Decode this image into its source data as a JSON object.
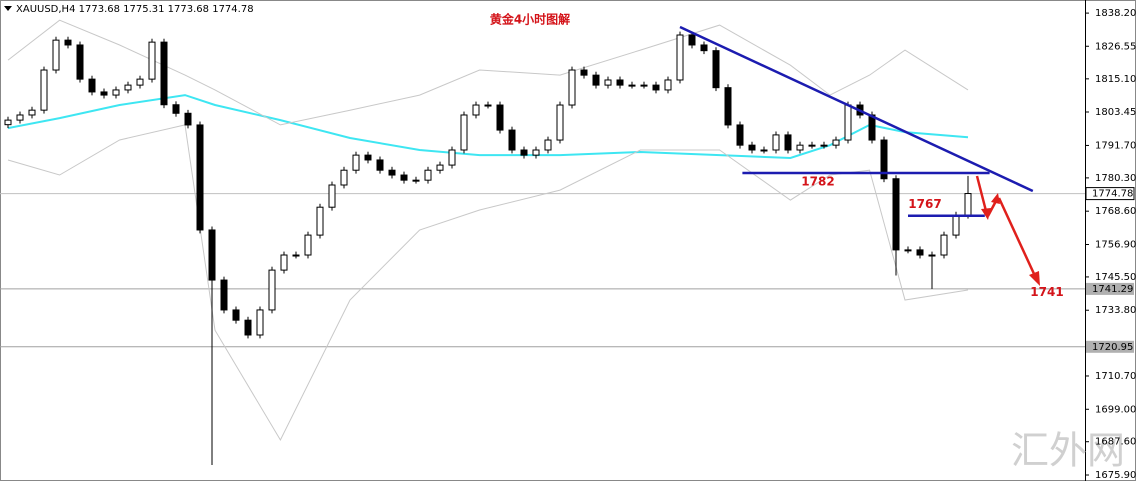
{
  "chart_data": {
    "type": "candlestick",
    "header": "XAUUSD,H4  1773.68 1775.31 1773.68 1774.78",
    "title": "黄金4小时图解",
    "watermark": "汇外网",
    "xlim": [
      -0.667,
      89.75
    ],
    "ylim": [
      1674.5,
      1842.1
    ],
    "yticks": [
      {
        "value": 1838.2,
        "label": "1838.20"
      },
      1826.55,
      {
        "value": 1815.1,
        "label": "1815.10"
      },
      1803.45,
      {
        "value": 1791.7,
        "label": "1791.70"
      },
      {
        "value": 1780.3,
        "label": "1780.30"
      },
      {
        "value": 1768.6,
        "label": "1768.60"
      },
      {
        "value": 1756.9,
        "label": "1756.90"
      },
      {
        "value": 1745.5,
        "label": "1745.50"
      },
      {
        "value": 1733.8,
        "label": "1733.80"
      },
      {
        "value": 1710.7,
        "label": "1710.70"
      },
      {
        "value": 1699,
        "label": "1699.00"
      },
      {
        "value": 1687.6,
        "label": "1687.60"
      },
      {
        "value": 1675.9,
        "label": "1675.90"
      }
    ],
    "open": [
      1799.0,
      1800.6,
      1802.4,
      1804.1,
      1818.2,
      1828.7,
      1827.0,
      1815.0,
      1810.5,
      1809.4,
      1811.2,
      1812.9,
      1815.0,
      1828.0,
      1806.0,
      1803.0,
      1798.9,
      1762.0,
      1744.4,
      1733.9,
      1730.3,
      1725.1,
      1733.9,
      1747.9,
      1753.2,
      1753.2,
      1760.2,
      1770.0,
      1777.8,
      1783.0,
      1788.3,
      1786.6,
      1783.0,
      1781.3,
      1779.5,
      1779.5,
      1783.0,
      1784.8,
      1790.1,
      1802.4,
      1805.9,
      1805.9,
      1797.1,
      1790.1,
      1788.3,
      1790.1,
      1793.6,
      1805.9,
      1818.2,
      1816.4,
      1812.9,
      1814.7,
      1812.9,
      1812.9,
      1812.9,
      1811.2,
      1814.7,
      1830.5,
      1827.0,
      1825.0,
      1812.0,
      1798.9,
      1791.8,
      1790.1,
      1790.1,
      1795.4,
      1790.1,
      1791.8,
      1791.8,
      1791.8,
      1793.6,
      1805.9,
      1802.4,
      1793.6,
      1780.0,
      1755.0,
      1755.0,
      1753.2,
      1753.2,
      1760.2,
      1767.2
    ],
    "high": [
      1801.8,
      1803.6,
      1805.3,
      1819.4,
      1829.9,
      1829.9,
      1828.2,
      1816.2,
      1811.7,
      1812.4,
      1814.1,
      1816.2,
      1829.2,
      1829.2,
      1807.2,
      1804.2,
      1800.1,
      1763.2,
      1745.6,
      1735.1,
      1731.5,
      1735.1,
      1749.1,
      1754.4,
      1754.4,
      1761.4,
      1771.2,
      1779.0,
      1784.2,
      1789.5,
      1789.5,
      1787.8,
      1784.2,
      1782.5,
      1780.7,
      1784.2,
      1786.0,
      1791.3,
      1803.6,
      1807.1,
      1807.1,
      1807.1,
      1798.3,
      1791.3,
      1791.3,
      1794.8,
      1807.1,
      1819.4,
      1819.4,
      1817.6,
      1815.9,
      1815.9,
      1814.1,
      1814.1,
      1814.1,
      1815.9,
      1831.7,
      1831.7,
      1828.2,
      1826.2,
      1813.2,
      1800.1,
      1793.0,
      1791.3,
      1796.6,
      1796.6,
      1793.0,
      1793.0,
      1793.0,
      1794.8,
      1807.1,
      1807.1,
      1803.6,
      1794.8,
      1781.2,
      1756.2,
      1756.2,
      1754.4,
      1761.4,
      1768.4,
      1781.0
    ],
    "low": [
      1797.8,
      1799.4,
      1801.2,
      1802.9,
      1817.0,
      1825.8,
      1813.8,
      1809.3,
      1808.2,
      1808.2,
      1810.0,
      1811.7,
      1813.8,
      1804.8,
      1801.8,
      1797.7,
      1760.8,
      1679.4,
      1732.7,
      1729.1,
      1723.9,
      1723.9,
      1732.7,
      1746.7,
      1752.0,
      1752.0,
      1759.0,
      1768.8,
      1776.6,
      1781.8,
      1785.4,
      1781.8,
      1780.1,
      1778.3,
      1778.3,
      1778.3,
      1781.8,
      1783.6,
      1788.9,
      1801.2,
      1804.7,
      1795.9,
      1788.9,
      1787.1,
      1787.1,
      1788.9,
      1792.4,
      1804.7,
      1815.2,
      1811.7,
      1811.7,
      1811.7,
      1811.7,
      1811.7,
      1810.0,
      1810.0,
      1813.5,
      1825.8,
      1823.8,
      1810.8,
      1797.7,
      1790.6,
      1788.9,
      1788.9,
      1788.9,
      1788.9,
      1788.9,
      1790.6,
      1790.6,
      1790.6,
      1792.4,
      1801.2,
      1792.4,
      1778.8,
      1746.0,
      1753.8,
      1752.0,
      1741.3,
      1752.0,
      1759.0,
      1766.0
    ],
    "close": [
      1800.6,
      1802.4,
      1804.1,
      1818.2,
      1828.7,
      1827.0,
      1815.0,
      1810.5,
      1809.4,
      1811.2,
      1812.9,
      1815.0,
      1828.0,
      1806.0,
      1803.0,
      1798.9,
      1762.0,
      1744.4,
      1733.9,
      1730.3,
      1725.1,
      1733.9,
      1747.9,
      1753.2,
      1753.2,
      1760.2,
      1770.0,
      1777.8,
      1783.0,
      1788.3,
      1786.6,
      1783.0,
      1781.3,
      1779.5,
      1779.5,
      1783.0,
      1784.8,
      1790.1,
      1802.4,
      1805.9,
      1805.9,
      1797.1,
      1790.1,
      1788.3,
      1790.1,
      1793.6,
      1805.9,
      1818.2,
      1816.4,
      1812.9,
      1814.7,
      1812.9,
      1812.9,
      1812.9,
      1811.2,
      1814.7,
      1830.5,
      1827.0,
      1825.0,
      1812.0,
      1798.9,
      1791.8,
      1790.1,
      1790.1,
      1795.4,
      1790.1,
      1791.8,
      1791.8,
      1791.8,
      1793.6,
      1805.9,
      1802.4,
      1793.6,
      1780.0,
      1755.0,
      1755.0,
      1753.2,
      1753.2,
      1760.2,
      1767.2,
      1774.8
    ],
    "indicators": [
      {
        "color": "#3ee6f2",
        "width": 2,
        "x": [
          0,
          4.3,
          9.3,
          14.75,
          17.25,
          22.7,
          28.5,
          34.3,
          39.3,
          46,
          52.7,
          59.3,
          65.2,
          68.5,
          71.8,
          74.75,
          80
        ],
        "values": [
          1797.8,
          1801.3,
          1805.9,
          1809.4,
          1805.9,
          1800.6,
          1794.3,
          1790.1,
          1788.3,
          1788.3,
          1789.4,
          1788.3,
          1787.3,
          1791.8,
          1798.9,
          1796.4,
          1794.6
        ]
      },
      {
        "color": "#c8c8c8",
        "width": 1,
        "x": [
          0,
          4.3,
          9.3,
          14.75,
          17.25,
          22.7,
          28.5,
          34.3,
          39.3,
          46,
          52.7,
          59.3,
          65.2,
          68.5,
          71.8,
          74.75,
          80
        ],
        "values": [
          1821.7,
          1835.7,
          1827.0,
          1816.4,
          1811.2,
          1798.9,
          1804.1,
          1809.4,
          1818.2,
          1816.4,
          1825.2,
          1834.0,
          1819.9,
          1809.4,
          1816.4,
          1825.2,
          1811.2
        ]
      },
      {
        "color": "#c8c8c8",
        "width": 1,
        "x": [
          0,
          4.3,
          9.3,
          14.75,
          17.25,
          22.7,
          28.5,
          34.3,
          39.3,
          46,
          52.7,
          59.3,
          65.2,
          68.5,
          71.8,
          74.75,
          80
        ],
        "values": [
          1786.6,
          1781.3,
          1793.6,
          1798.9,
          1726.8,
          1688.2,
          1737.4,
          1762.0,
          1769.0,
          1776.0,
          1790.1,
          1790.1,
          1772.5,
          1781.3,
          1783.0,
          1737.4,
          1740.9
        ]
      }
    ],
    "price_lines": [
      1774.78,
      1741.29,
      1720.95
    ],
    "trendline": {
      "x": [
        56,
        85.4
      ],
      "values": [
        1833.3,
        1775.7
      ]
    },
    "levels": [
      {
        "value": 1782,
        "x": [
          61.2,
          81.8
        ]
      },
      {
        "value": 1767,
        "x": [
          75,
          81.4
        ]
      }
    ],
    "target": 1741
  }
}
